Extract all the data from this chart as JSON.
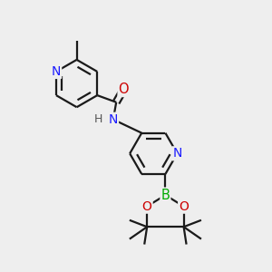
{
  "bg_color": "#eeeeee",
  "bond_color": "#1a1a1a",
  "bond_lw": 1.6,
  "dbo": 0.012,
  "fig_w": 3.0,
  "fig_h": 3.0,
  "dpi": 100,
  "xlim": [
    0,
    1
  ],
  "ylim": [
    0,
    1
  ],
  "colors": {
    "N": "#1a1aff",
    "O": "#cc0000",
    "B": "#00aa00",
    "H": "#555555",
    "C": "#1a1a1a"
  }
}
